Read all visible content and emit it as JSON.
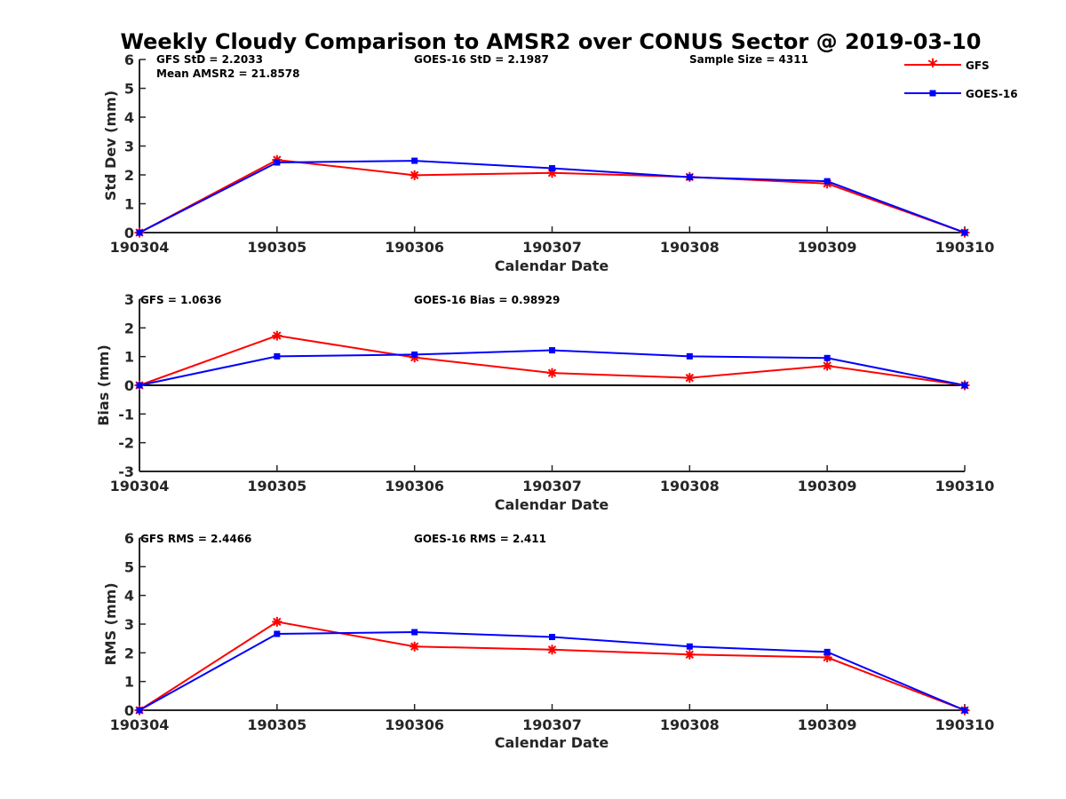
{
  "chart_data": [
    {
      "type": "line",
      "title": "Weekly Cloudy Comparison to AMSR2 over CONUS Sector @ 2019-03-10",
      "xlabel": "Calendar Date",
      "ylabel": "Std Dev (mm)",
      "categories": [
        "190304",
        "190305",
        "190306",
        "190307",
        "190308",
        "190309",
        "190310"
      ],
      "ylim": [
        0,
        6
      ],
      "yticks": [
        "0",
        "1",
        "2",
        "3",
        "4",
        "5",
        "6"
      ],
      "zero_line": false,
      "series": [
        {
          "name": "GFS",
          "color": "#ff0000",
          "marker": "asterisk",
          "values": [
            0,
            2.52,
            1.99,
            2.07,
            1.93,
            1.7,
            0
          ]
        },
        {
          "name": "GOES-16",
          "color": "#0000ff",
          "marker": "square",
          "values": [
            0,
            2.43,
            2.49,
            2.23,
            1.92,
            1.78,
            0
          ]
        }
      ],
      "annotations": [
        "GFS StD = 2.2033",
        "Mean AMSR2 = 21.8578",
        "GOES-16 StD = 2.1987",
        "Sample Size = 4311"
      ]
    },
    {
      "type": "line",
      "xlabel": "Calendar Date",
      "ylabel": "Bias (mm)",
      "categories": [
        "190304",
        "190305",
        "190306",
        "190307",
        "190308",
        "190309",
        "190310"
      ],
      "ylim": [
        -3,
        3
      ],
      "yticks": [
        "-3",
        "-2",
        "-1",
        "0",
        "1",
        "2",
        "3"
      ],
      "zero_line": true,
      "series": [
        {
          "name": "GFS",
          "color": "#ff0000",
          "marker": "asterisk",
          "values": [
            0,
            1.73,
            0.97,
            0.43,
            0.26,
            0.68,
            0
          ]
        },
        {
          "name": "GOES-16",
          "color": "#0000ff",
          "marker": "square",
          "values": [
            0,
            1.01,
            1.07,
            1.22,
            1.01,
            0.95,
            0
          ]
        }
      ],
      "annotations": [
        "GFS = 1.0636",
        "GOES-16 Bias  = 0.98929"
      ]
    },
    {
      "type": "line",
      "xlabel": "Calendar Date",
      "ylabel": "RMS (mm)",
      "categories": [
        "190304",
        "190305",
        "190306",
        "190307",
        "190308",
        "190309",
        "190310"
      ],
      "ylim": [
        0,
        6
      ],
      "yticks": [
        "0",
        "1",
        "2",
        "3",
        "4",
        "5",
        "6"
      ],
      "zero_line": false,
      "series": [
        {
          "name": "GFS",
          "color": "#ff0000",
          "marker": "asterisk",
          "values": [
            0,
            3.08,
            2.22,
            2.11,
            1.94,
            1.84,
            0
          ]
        },
        {
          "name": "GOES-16",
          "color": "#0000ff",
          "marker": "square",
          "values": [
            0,
            2.66,
            2.72,
            2.55,
            2.22,
            2.03,
            0
          ]
        }
      ],
      "annotations": [
        "GFS RMS = 2.4466",
        "GOES-16 RMS = 2.411"
      ]
    }
  ],
  "legend": {
    "placement": "top-right",
    "entries": [
      {
        "label": "GFS",
        "color": "#ff0000",
        "marker": "asterisk"
      },
      {
        "label": "GOES-16",
        "color": "#0000ff",
        "marker": "square"
      }
    ]
  }
}
